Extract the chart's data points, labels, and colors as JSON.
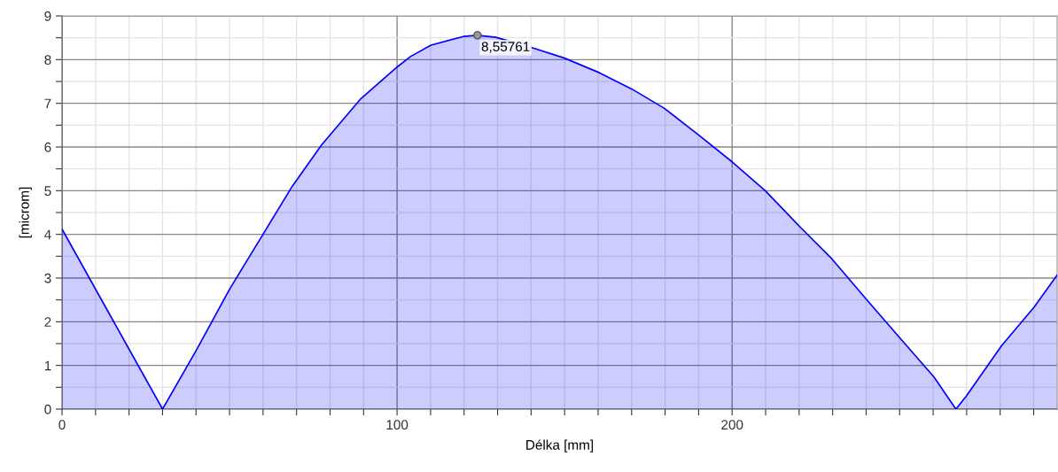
{
  "chart_data": {
    "type": "area",
    "xlabel": "Délka [mm]",
    "ylabel": "[microm]",
    "x": [
      0,
      30,
      40.1,
      50.2,
      59.9,
      68.7,
      77.5,
      89,
      100,
      104,
      110.1,
      119.8,
      124,
      129.5,
      140,
      149.8,
      160.4,
      170,
      179.7,
      189.9,
      200,
      209.9,
      220.4,
      229.3,
      239.9,
      250.5,
      260.2,
      266.8,
      269.9,
      280.4,
      290.1,
      297
    ],
    "series": [
      {
        "color": "#0000ff",
        "values": [
          4.12,
          0,
          1.35,
          2.77,
          3.99,
          5.1,
          6.05,
          7.09,
          7.83,
          8.07,
          8.33,
          8.53,
          8.55761,
          8.51,
          8.28,
          8.04,
          7.7,
          7.33,
          6.89,
          6.28,
          5.66,
          5.0,
          4.16,
          3.48,
          2.53,
          1.59,
          0.74,
          0,
          0.3,
          1.45,
          2.33,
          3.07
        ]
      }
    ],
    "annotations": [
      {
        "text": "8,55761",
        "x": 124,
        "y": 8.55761
      }
    ],
    "xlim": [
      0,
      297
    ],
    "xticks": [
      0,
      {
        "value": 10,
        "label": null
      },
      {
        "value": 20,
        "label": null
      },
      {
        "value": 30,
        "label": null
      },
      {
        "value": 40,
        "label": null
      },
      {
        "value": 50,
        "label": null
      },
      {
        "value": 60,
        "label": null
      },
      {
        "value": 70,
        "label": null
      },
      {
        "value": 80,
        "label": null
      },
      {
        "value": 90,
        "label": null
      },
      100,
      {
        "value": 110,
        "label": null
      },
      {
        "value": 120,
        "label": null
      },
      {
        "value": 130,
        "label": null
      },
      {
        "value": 140,
        "label": null
      },
      {
        "value": 150,
        "label": null
      },
      {
        "value": 160,
        "label": null
      },
      {
        "value": 170,
        "label": null
      },
      {
        "value": 180,
        "label": null
      },
      {
        "value": 190,
        "label": null
      },
      200,
      {
        "value": 210,
        "label": null
      },
      {
        "value": 220,
        "label": null
      },
      {
        "value": 230,
        "label": null
      },
      {
        "value": 240,
        "label": null
      },
      {
        "value": 250,
        "label": null
      },
      {
        "value": 260,
        "label": null
      },
      {
        "value": 270,
        "label": null
      },
      {
        "value": 280,
        "label": null
      },
      {
        "value": 290,
        "label": null
      }
    ],
    "ylim": [
      0,
      9
    ],
    "yticks": [
      0,
      {
        "value": 0.5,
        "label": null
      },
      1,
      {
        "value": 1.5,
        "label": null
      },
      2,
      {
        "value": 2.5,
        "label": null
      },
      3,
      {
        "value": 3.5,
        "label": null
      },
      4,
      {
        "value": 4.5,
        "label": null
      },
      5,
      {
        "value": 5.5,
        "label": null
      },
      6,
      {
        "value": 6.5,
        "label": null
      },
      7,
      {
        "value": 7.5,
        "label": null
      },
      8,
      {
        "value": 8.5,
        "label": null
      },
      9
    ],
    "grid": true,
    "legend": false
  }
}
